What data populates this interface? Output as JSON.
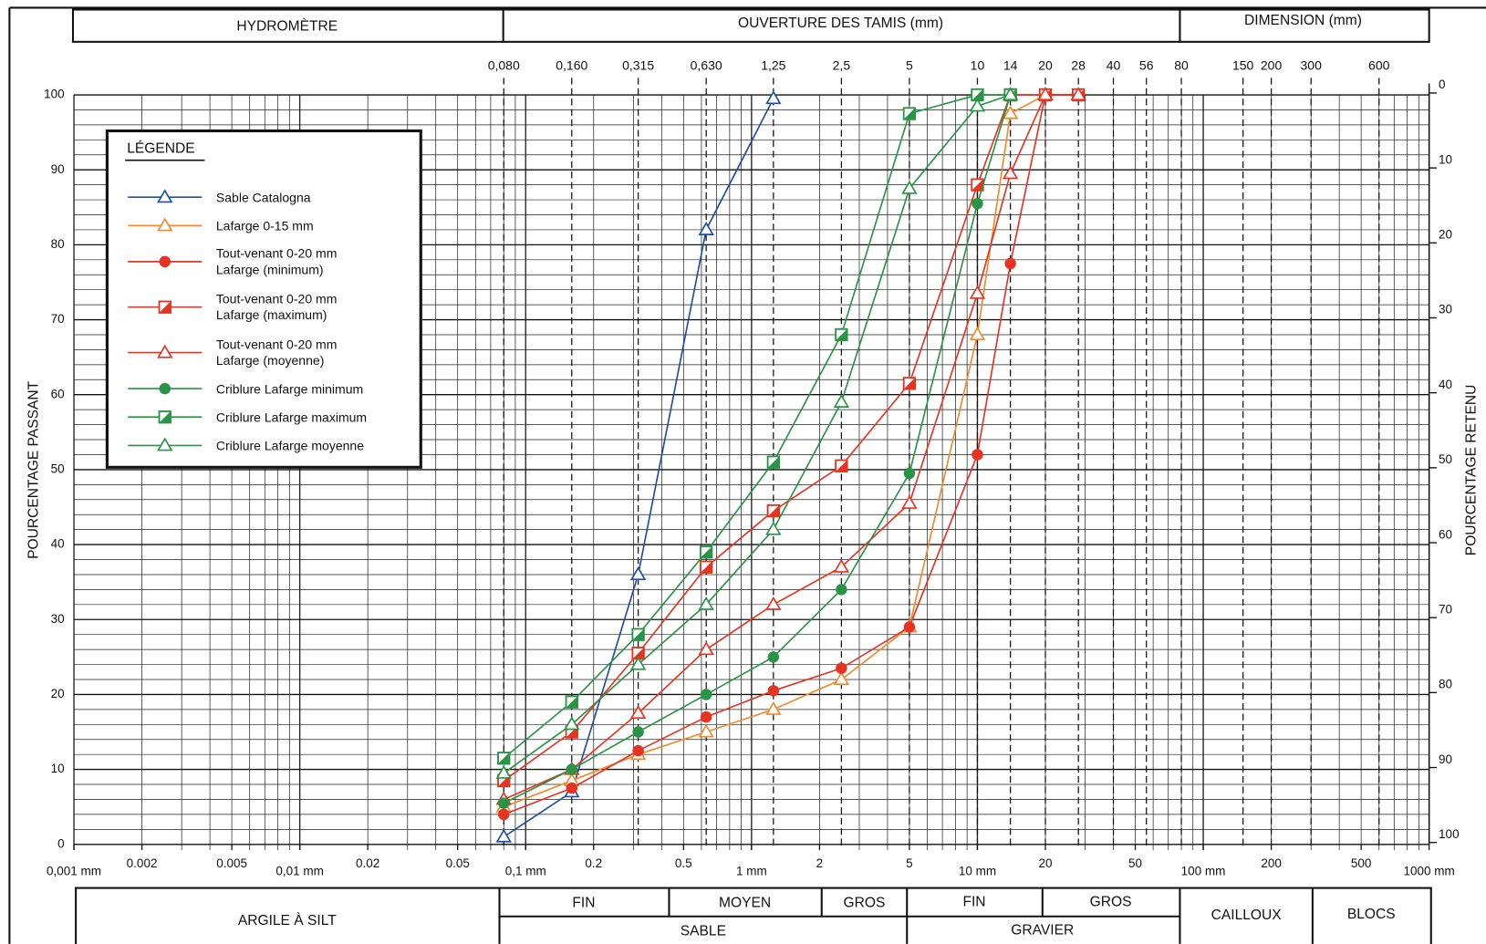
{
  "chart_data": {
    "type": "line",
    "log_x": true,
    "top_headers": [
      "HYDROMÈTRE",
      "OUVERTURE DES TAMIS (mm)",
      "DIMENSION (mm)"
    ],
    "ylabel": "POURCENTAGE PASSANT",
    "y2label": "POURCENTAGE RETENU",
    "legend_title": "LÉGENDE",
    "xlim": [
      0.001,
      1000
    ],
    "xticks": [
      {
        "value": 0.001,
        "label": "0,001 mm"
      },
      0.002,
      0.005,
      {
        "value": 0.01,
        "label": "0,01 mm"
      },
      0.02,
      0.05,
      {
        "value": 0.1,
        "label": "0,1 mm"
      },
      0.2,
      0.5,
      {
        "value": 1,
        "label": "1 mm"
      },
      2,
      5,
      {
        "value": 10,
        "label": "10 mm"
      },
      20,
      50,
      {
        "value": 100,
        "label": "100 mm"
      },
      200,
      500,
      {
        "value": 1000,
        "label": "1000 mm"
      }
    ],
    "xtick_labels_short": {
      "0.002": "2",
      "0.005": "5"
    },
    "top_xticks": [
      {
        "value": 0.08,
        "label": "0,080"
      },
      {
        "value": 0.16,
        "label": "0,160"
      },
      {
        "value": 0.315,
        "label": "0,315"
      },
      {
        "value": 0.63,
        "label": "0,630"
      },
      {
        "value": 1.25,
        "label": "1,25"
      },
      {
        "value": 2.5,
        "label": "2,5"
      },
      5,
      10,
      14,
      20,
      28,
      40,
      56,
      80,
      150,
      200,
      300,
      600
    ],
    "ylim": [
      0,
      100
    ],
    "yticks": [
      0,
      10,
      20,
      30,
      40,
      50,
      60,
      70,
      80,
      90,
      100
    ],
    "yminor": [
      2,
      4,
      6,
      8,
      12,
      14,
      16,
      18,
      22,
      24,
      26,
      28,
      32,
      34,
      36,
      38,
      42,
      44,
      46,
      48,
      52,
      54,
      56,
      58,
      62,
      64,
      66,
      68,
      72,
      74,
      76,
      78,
      82,
      84,
      86,
      88,
      92,
      94,
      96,
      98
    ],
    "y2lim": [
      100,
      0
    ],
    "y2ticks": [
      0,
      10,
      20,
      30,
      40,
      50,
      60,
      70,
      80,
      90,
      100
    ],
    "grid": true,
    "legend": "upper left",
    "series": [
      {
        "name": "Sable Catalogna",
        "color": "#1f4fa0",
        "marker": "triangle",
        "x": [
          0.08,
          0.16,
          0.315,
          0.63,
          1.25
        ],
        "values": [
          1,
          7,
          36,
          82,
          99.5
        ]
      },
      {
        "name": "Lafarge 0-15 mm",
        "color": "#f08a2a",
        "marker": "triangle",
        "x": [
          0.08,
          0.16,
          0.315,
          0.63,
          1.25,
          2.5,
          5,
          10,
          14,
          20
        ],
        "values": [
          5,
          8.5,
          12,
          15,
          18,
          22,
          29,
          68,
          97.5,
          100
        ]
      },
      {
        "name": "Tout-venant 0-20 mm\nLafarge (minimum)",
        "color": "#e63322",
        "marker": "circle",
        "x": [
          0.08,
          0.16,
          0.315,
          0.63,
          1.25,
          2.5,
          5,
          10,
          14,
          20,
          28
        ],
        "values": [
          4,
          7.5,
          12.5,
          17,
          20.5,
          23.5,
          29,
          52,
          77.5,
          100,
          100
        ]
      },
      {
        "name": "Tout-venant 0-20 mm\nLafarge (maximum)",
        "color": "#e63322",
        "marker": "square",
        "x": [
          0.08,
          0.16,
          0.315,
          0.63,
          1.25,
          2.5,
          5,
          10,
          14,
          20,
          28
        ],
        "values": [
          8.5,
          15,
          25.5,
          37,
          44.5,
          50.5,
          61.5,
          88,
          100,
          100,
          100
        ]
      },
      {
        "name": "Tout-venant 0-20 mm\nLafarge (moyenne)",
        "color": "#e63322",
        "marker": "triangle",
        "x": [
          0.08,
          0.16,
          0.315,
          0.63,
          1.25,
          2.5,
          5,
          10,
          14,
          20,
          28
        ],
        "values": [
          6,
          10,
          17.5,
          26,
          32,
          37,
          45.5,
          73.5,
          89.5,
          100,
          100
        ]
      },
      {
        "name": "Criblure Lafarge minimum",
        "color": "#2a9446",
        "marker": "circle",
        "x": [
          0.08,
          0.16,
          0.315,
          0.63,
          1.25,
          2.5,
          5,
          10,
          14
        ],
        "values": [
          5.5,
          10,
          15,
          20,
          25,
          34,
          49.5,
          85.5,
          100
        ]
      },
      {
        "name": "Criblure Lafarge maximum",
        "color": "#2a9446",
        "marker": "square",
        "x": [
          0.08,
          0.16,
          0.315,
          0.63,
          1.25,
          2.5,
          5,
          10,
          14
        ],
        "values": [
          11.5,
          19,
          28,
          39,
          51,
          68,
          97.5,
          100,
          100
        ]
      },
      {
        "name": "Criblure Lafarge moyenne",
        "color": "#2a9446",
        "marker": "triangle",
        "x": [
          0.08,
          0.16,
          0.315,
          0.63,
          1.25,
          2.5,
          5,
          10,
          14
        ],
        "values": [
          9.5,
          16,
          24,
          32,
          42,
          59,
          87.5,
          98.5,
          100
        ]
      }
    ],
    "bottom_labels": [
      "ARGILE À SILT",
      "FIN",
      "MOYEN",
      "GROS",
      "FIN",
      "GROS",
      "SABLE",
      "GRAVIER",
      "CAILLOUX",
      "BLOCS"
    ]
  }
}
